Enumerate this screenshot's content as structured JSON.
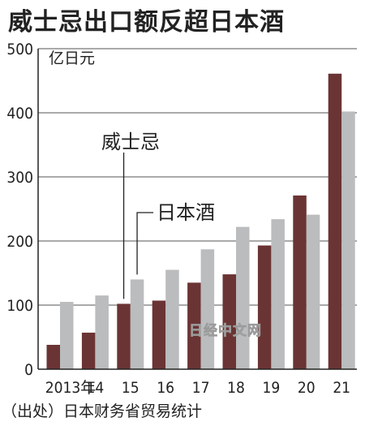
{
  "chart_data": {
    "type": "bar",
    "title": "威士忌出口额反超日本酒",
    "unit": "亿日元",
    "categories": [
      "2013年",
      "14",
      "15",
      "16",
      "17",
      "18",
      "19",
      "20",
      "21"
    ],
    "series": [
      {
        "name": "威士忌",
        "color": "#6b3434",
        "values": [
          38,
          57,
          102,
          107,
          135,
          148,
          193,
          271,
          461
        ]
      },
      {
        "name": "日本酒",
        "color": "#babcbd",
        "values": [
          105,
          115,
          140,
          155,
          187,
          222,
          234,
          241,
          402
        ]
      }
    ],
    "ylim": [
      0,
      500
    ],
    "yticks": [
      0,
      100,
      200,
      300,
      400,
      500
    ],
    "grid": true,
    "source": "（出处）日本财务省贸易统计",
    "watermark": "日经中文网"
  }
}
